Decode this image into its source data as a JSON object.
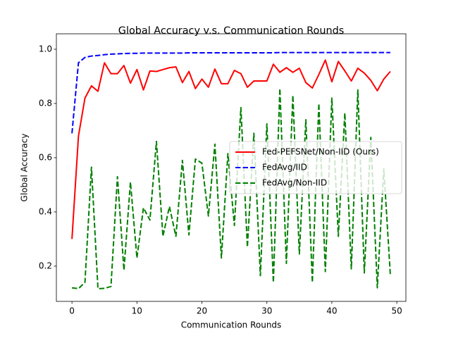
{
  "chart_data": {
    "type": "line",
    "title": "Global Accuracy v.s. Communication Rounds",
    "xlabel": "Communication Rounds",
    "ylabel": "Global Accuracy",
    "x": [
      0,
      1,
      2,
      3,
      4,
      5,
      6,
      7,
      8,
      9,
      10,
      11,
      12,
      13,
      14,
      15,
      16,
      17,
      18,
      19,
      20,
      21,
      22,
      23,
      24,
      25,
      26,
      27,
      28,
      29,
      30,
      31,
      32,
      33,
      34,
      35,
      36,
      37,
      38,
      39,
      40,
      41,
      42,
      43,
      44,
      45,
      46,
      47,
      48,
      49
    ],
    "series": [
      {
        "name": "Fed-PEFSNet/Non-IID (Ours)",
        "color": "#ff0000",
        "dash": false,
        "values": [
          0.3,
          0.68,
          0.82,
          0.865,
          0.845,
          0.95,
          0.91,
          0.91,
          0.94,
          0.875,
          0.925,
          0.85,
          0.92,
          0.918,
          0.925,
          0.932,
          0.935,
          0.877,
          0.918,
          0.855,
          0.89,
          0.86,
          0.927,
          0.873,
          0.873,
          0.922,
          0.91,
          0.86,
          0.883,
          0.883,
          0.883,
          0.945,
          0.915,
          0.932,
          0.915,
          0.93,
          0.877,
          0.857,
          0.907,
          0.96,
          0.88,
          0.955,
          0.92,
          0.883,
          0.93,
          0.912,
          0.885,
          0.847,
          0.89,
          0.918
        ]
      },
      {
        "name": "FedAvg/IID",
        "color": "#0000ff",
        "dash": true,
        "values": [
          0.69,
          0.95,
          0.97,
          0.975,
          0.977,
          0.98,
          0.982,
          0.983,
          0.984,
          0.985,
          0.985,
          0.986,
          0.986,
          0.986,
          0.986,
          0.986,
          0.986,
          0.986,
          0.987,
          0.987,
          0.987,
          0.987,
          0.987,
          0.987,
          0.987,
          0.987,
          0.987,
          0.987,
          0.987,
          0.987,
          0.987,
          0.987,
          0.988,
          0.988,
          0.988,
          0.988,
          0.988,
          0.988,
          0.988,
          0.988,
          0.988,
          0.988,
          0.988,
          0.988,
          0.988,
          0.988,
          0.988,
          0.988,
          0.988,
          0.988
        ]
      },
      {
        "name": "FedAvg/Non-IID",
        "color": "#008000",
        "dash": true,
        "values": [
          0.12,
          0.117,
          0.14,
          0.565,
          0.117,
          0.118,
          0.125,
          0.53,
          0.185,
          0.51,
          0.23,
          0.415,
          0.37,
          0.66,
          0.31,
          0.42,
          0.31,
          0.59,
          0.315,
          0.595,
          0.58,
          0.385,
          0.65,
          0.23,
          0.615,
          0.35,
          0.785,
          0.27,
          0.69,
          0.165,
          0.725,
          0.14,
          0.855,
          0.21,
          0.83,
          0.245,
          0.74,
          0.14,
          0.8,
          0.18,
          0.82,
          0.31,
          0.765,
          0.19,
          0.85,
          0.175,
          0.675,
          0.12,
          0.56,
          0.17
        ]
      }
    ],
    "xlim": [
      -2.4,
      51.4
    ],
    "xticks": [
      0,
      10,
      20,
      30,
      40,
      50
    ],
    "ylim": [
      0.07,
      1.057
    ],
    "yticks": [
      0.2,
      0.4,
      0.6,
      0.8,
      {
        "value": 1,
        "label": "1.0"
      }
    ],
    "grid": false,
    "legend": "center right"
  }
}
